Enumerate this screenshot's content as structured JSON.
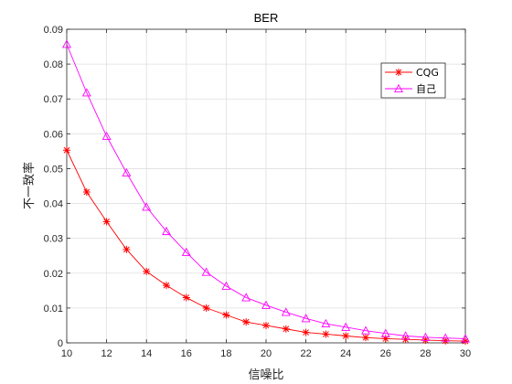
{
  "chart_data": {
    "type": "line",
    "title": "BER",
    "xlabel": "信噪比",
    "ylabel": "不一致率",
    "xlim": [
      10,
      30
    ],
    "ylim": [
      0,
      0.09
    ],
    "x_ticks": [
      10,
      12,
      14,
      16,
      18,
      20,
      22,
      24,
      26,
      28,
      30
    ],
    "y_ticks": [
      0,
      0.01,
      0.02,
      0.03,
      0.04,
      0.05,
      0.06,
      0.07,
      0.08,
      0.09
    ],
    "x_tick_labels": [
      "10",
      "12",
      "14",
      "16",
      "18",
      "20",
      "22",
      "24",
      "26",
      "28",
      "30"
    ],
    "y_tick_labels": [
      "0",
      "0.01",
      "0.02",
      "0.03",
      "0.04",
      "0.05",
      "0.06",
      "0.07",
      "0.08",
      "0.09"
    ],
    "grid": true,
    "legend_position": "top-right",
    "x": [
      10,
      11,
      12,
      13,
      14,
      15,
      16,
      17,
      18,
      19,
      20,
      21,
      22,
      23,
      24,
      25,
      26,
      27,
      28,
      29,
      30
    ],
    "series": [
      {
        "name": "CQG",
        "color": "#ff0000",
        "marker": "asterisk",
        "values": [
          0.0553,
          0.0433,
          0.0348,
          0.0268,
          0.0205,
          0.0165,
          0.013,
          0.01,
          0.008,
          0.006,
          0.005,
          0.004,
          0.003,
          0.0025,
          0.002,
          0.0015,
          0.0012,
          0.001,
          0.0008,
          0.0006,
          0.0005
        ]
      },
      {
        "name": "自己",
        "color": "#ff00ff",
        "marker": "triangle",
        "values": [
          0.0857,
          0.0718,
          0.0593,
          0.0488,
          0.039,
          0.032,
          0.026,
          0.0203,
          0.0163,
          0.013,
          0.0108,
          0.0088,
          0.007,
          0.0055,
          0.0045,
          0.0035,
          0.0027,
          0.002,
          0.0016,
          0.0014,
          0.0012
        ]
      }
    ]
  }
}
